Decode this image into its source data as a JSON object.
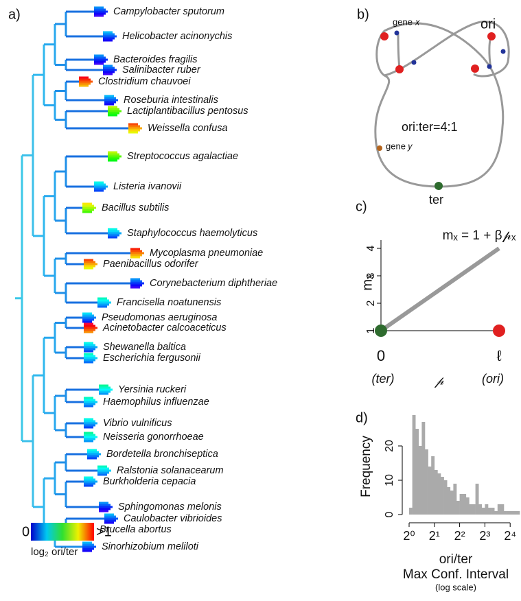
{
  "panels": {
    "a": "a)",
    "b": "b)",
    "c": "c)",
    "d": "d)"
  },
  "tree": {
    "species": [
      "Campylobacter sputorum",
      "Helicobacter acinonychis",
      "Bacteroides fragilis",
      "Salinibacter ruber",
      "Clostridium chauvoei",
      "Roseburia intestinalis",
      "Lactiplantibacillus pentosus",
      "Weissella confusa",
      "Streptococcus agalactiae",
      "Listeria ivanovii",
      "Bacillus subtilis",
      "Staphylococcus haemolyticus",
      "Mycoplasma pneumoniae",
      "Paenibacillus odorifer",
      "Corynebacterium diphtheriae",
      "Francisella noatunensis",
      "Pseudomonas aeruginosa",
      "Acinetobacter calcoaceticus",
      "Shewanella baltica",
      "Escherichia fergusonii",
      "Yersinia ruckeri",
      "Haemophilus influenzae",
      "Vibrio vulnificus",
      "Neisseria gonorrhoeae",
      "Bordetella bronchiseptica",
      "Ralstonia solanacearum",
      "Burkholderia cepacia",
      "Sphingomonas melonis",
      "Caulobacter vibrioides",
      "Brucella abortus",
      "Sinorhizobium meliloti"
    ],
    "colorbar": {
      "low": "0",
      "high": ">1",
      "label": "log₂ ori/ter"
    }
  },
  "diagram": {
    "gene_x": "gene 𝑥",
    "ori": "ori",
    "ratio": "ori:ter=4:1",
    "gene_y": "gene 𝑦",
    "ter": "ter"
  },
  "chart_data": [
    {
      "type": "line",
      "title": "mₓ = 1 + β𝓅ₓ",
      "ylabel": "mₓ",
      "x": [
        0,
        1
      ],
      "series": [
        {
          "color": "#999999",
          "values": [
            1,
            4
          ]
        }
      ],
      "markers": [
        {
          "x": 0,
          "y": 1,
          "color": "#2e6b2e"
        },
        {
          "x": 1,
          "y": 1,
          "color": "#e02020"
        }
      ],
      "xlim": [
        0,
        1
      ],
      "ylim": [
        1,
        4.3
      ],
      "yticks": [
        1,
        2,
        3,
        4
      ],
      "xticks": [
        {
          "value": 0,
          "label": "0"
        },
        {
          "value": 1,
          "label": "ℓ"
        }
      ],
      "xlabels": [
        "(ter)",
        "𝓅",
        "(ori)"
      ]
    },
    {
      "type": "histogram",
      "ylabel": "Frequency",
      "xlabel": [
        "ori/ter",
        "Max Conf. Interval",
        "(log scale)"
      ],
      "color": "#aaaaaa",
      "log_x": true,
      "bins": [
        1,
        1.091,
        1.189,
        1.297,
        1.414,
        1.542,
        1.682,
        1.834,
        2,
        2.181,
        2.378,
        2.594,
        2.828,
        3.084,
        3.364,
        3.668,
        4,
        4.362,
        4.757,
        5.187,
        5.657,
        6.169,
        6.727,
        7.336,
        8,
        8.724,
        9.514,
        10.375,
        11.314,
        12.338,
        13.454,
        14.672,
        16,
        17.448,
        19.027,
        20.749
      ],
      "values": [
        2,
        29,
        25,
        20,
        27,
        19,
        14,
        17,
        13,
        12,
        11,
        10,
        8,
        7,
        9,
        4,
        6,
        6,
        5,
        3,
        3,
        9,
        3,
        2,
        3,
        2,
        2,
        1,
        3,
        3,
        1,
        1,
        1,
        1,
        1
      ],
      "xlim": [
        1,
        20.749
      ],
      "ylim": [
        0,
        30
      ],
      "yticks": [
        0,
        10,
        20
      ],
      "xticks": [
        {
          "value": 1,
          "label": "2⁰"
        },
        {
          "value": 2,
          "label": "2¹"
        },
        {
          "value": 4,
          "label": "2²"
        },
        {
          "value": 8,
          "label": "2³"
        },
        {
          "value": 16,
          "label": "2⁴"
        }
      ]
    }
  ]
}
